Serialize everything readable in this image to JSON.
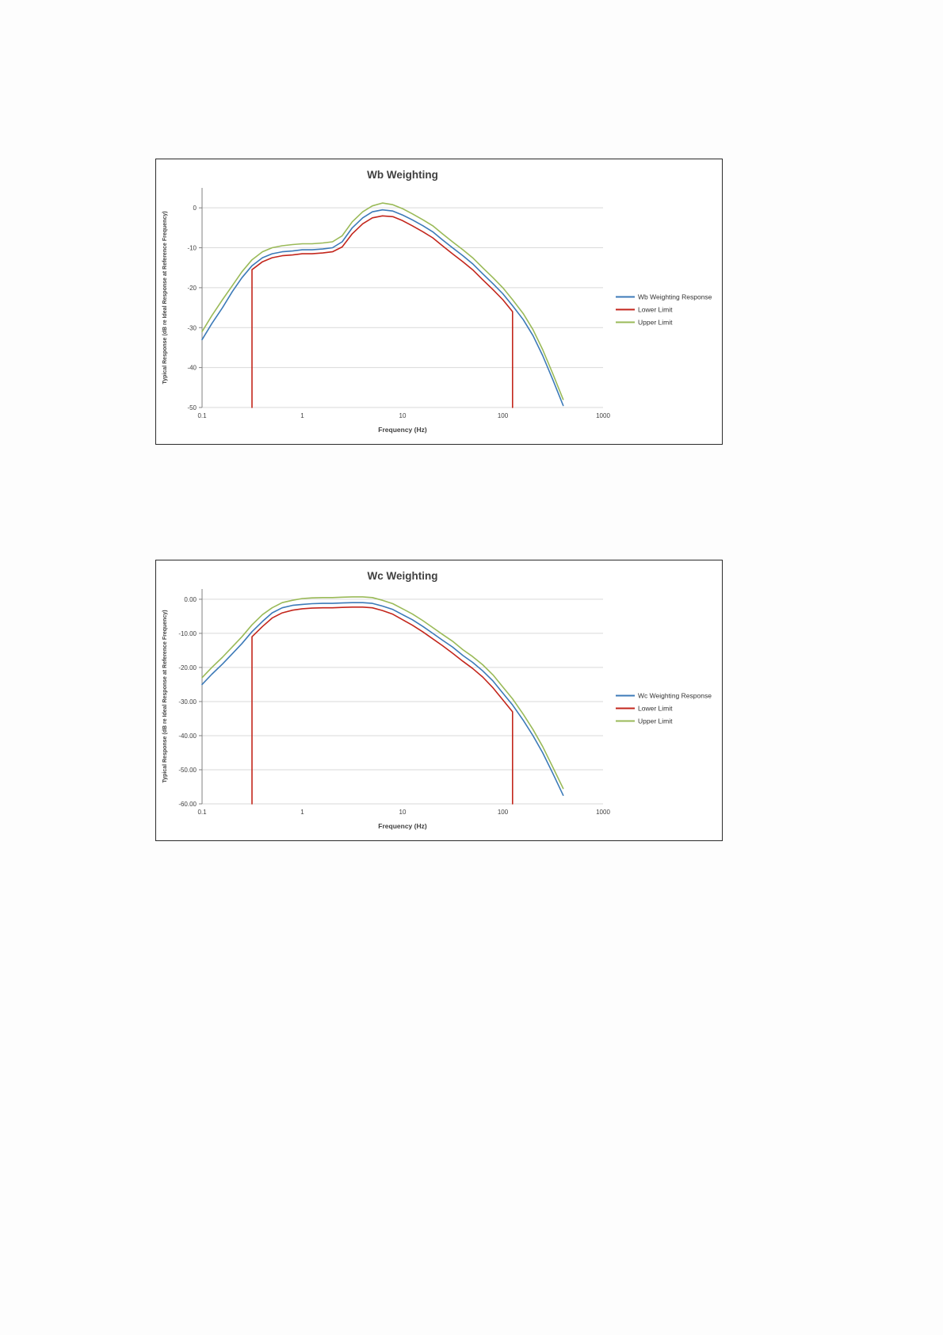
{
  "page": {
    "background": "#ffffff"
  },
  "colors": {
    "grid": "#d9d9d9",
    "axis": "#808080",
    "text": "#404040",
    "title": "#404040",
    "blue": "#3c7ab8",
    "red": "#c3261c",
    "green": "#9aba58"
  },
  "chart_data": [
    {
      "type": "line",
      "id": "wb-weighting",
      "title": "Wb Weighting",
      "xlabel": "Frequency (Hz)",
      "ylabel": "Typical Response (dB re Ideal Response at Reference Frequency)",
      "x_scale": "log",
      "xlim": [
        0.1,
        1000
      ],
      "ylim": [
        5,
        -50
      ],
      "grid": true,
      "legend_position": "right",
      "xticks": [
        {
          "value": 0.1,
          "label": "0.1"
        },
        {
          "value": 1,
          "label": "1"
        },
        {
          "value": 10,
          "label": "10"
        },
        {
          "value": 100,
          "label": "100"
        },
        {
          "value": 1000,
          "label": "1000"
        }
      ],
      "yticks": [
        {
          "value": 0,
          "label": "0"
        },
        {
          "value": -10,
          "label": "-10"
        },
        {
          "value": -20,
          "label": "-20"
        },
        {
          "value": -30,
          "label": "-30"
        },
        {
          "value": -40,
          "label": "-40"
        },
        {
          "value": -50,
          "label": "-50"
        }
      ],
      "series": [
        {
          "name": "Wb Weighting Response",
          "color": "#3c7ab8",
          "points": [
            [
              0.1,
              -33
            ],
            [
              0.125,
              -29
            ],
            [
              0.16,
              -25
            ],
            [
              0.2,
              -21
            ],
            [
              0.25,
              -17.5
            ],
            [
              0.315,
              -14.5
            ],
            [
              0.4,
              -12.5
            ],
            [
              0.5,
              -11.5
            ],
            [
              0.63,
              -11
            ],
            [
              0.8,
              -10.8
            ],
            [
              1,
              -10.5
            ],
            [
              1.25,
              -10.5
            ],
            [
              1.6,
              -10.3
            ],
            [
              2,
              -10
            ],
            [
              2.5,
              -8.5
            ],
            [
              3.15,
              -5
            ],
            [
              4,
              -2.5
            ],
            [
              5,
              -1
            ],
            [
              6.3,
              -0.5
            ],
            [
              8,
              -0.8
            ],
            [
              10,
              -1.8
            ],
            [
              12.5,
              -3
            ],
            [
              16,
              -4.5
            ],
            [
              20,
              -6
            ],
            [
              25,
              -8
            ],
            [
              31.5,
              -10
            ],
            [
              40,
              -12
            ],
            [
              50,
              -14
            ],
            [
              63,
              -16.5
            ],
            [
              80,
              -19
            ],
            [
              100,
              -21.5
            ],
            [
              125,
              -24.5
            ],
            [
              160,
              -28
            ],
            [
              200,
              -32
            ],
            [
              250,
              -37
            ],
            [
              315,
              -43
            ],
            [
              400,
              -49.5
            ]
          ]
        },
        {
          "name": "Lower Limit",
          "color": "#c3261c",
          "points": [
            [
              0.315,
              -50
            ],
            [
              0.315,
              -15.5
            ],
            [
              0.4,
              -13.5
            ],
            [
              0.5,
              -12.5
            ],
            [
              0.63,
              -12
            ],
            [
              0.8,
              -11.8
            ],
            [
              1,
              -11.5
            ],
            [
              1.25,
              -11.5
            ],
            [
              1.6,
              -11.3
            ],
            [
              2,
              -11
            ],
            [
              2.5,
              -9.8
            ],
            [
              3.15,
              -6.5
            ],
            [
              4,
              -4
            ],
            [
              5,
              -2.5
            ],
            [
              6.3,
              -2
            ],
            [
              8,
              -2.2
            ],
            [
              10,
              -3.2
            ],
            [
              12.5,
              -4.5
            ],
            [
              16,
              -6
            ],
            [
              20,
              -7.5
            ],
            [
              25,
              -9.5
            ],
            [
              31.5,
              -11.5
            ],
            [
              40,
              -13.5
            ],
            [
              50,
              -15.5
            ],
            [
              63,
              -18
            ],
            [
              80,
              -20.5
            ],
            [
              100,
              -23
            ],
            [
              125,
              -26
            ],
            [
              125,
              -50
            ]
          ]
        },
        {
          "name": "Upper Limit",
          "color": "#9aba58",
          "points": [
            [
              0.1,
              -31
            ],
            [
              0.125,
              -27
            ],
            [
              0.16,
              -23
            ],
            [
              0.2,
              -19.5
            ],
            [
              0.25,
              -16
            ],
            [
              0.315,
              -13
            ],
            [
              0.4,
              -11
            ],
            [
              0.5,
              -10
            ],
            [
              0.63,
              -9.5
            ],
            [
              0.8,
              -9.2
            ],
            [
              1,
              -9
            ],
            [
              1.25,
              -9
            ],
            [
              1.6,
              -8.8
            ],
            [
              2,
              -8.5
            ],
            [
              2.5,
              -7
            ],
            [
              3.15,
              -3.5
            ],
            [
              4,
              -1
            ],
            [
              5,
              0.5
            ],
            [
              6.3,
              1.2
            ],
            [
              8,
              0.8
            ],
            [
              10,
              -0.2
            ],
            [
              12.5,
              -1.5
            ],
            [
              16,
              -3
            ],
            [
              20,
              -4.5
            ],
            [
              25,
              -6.5
            ],
            [
              31.5,
              -8.5
            ],
            [
              40,
              -10.5
            ],
            [
              50,
              -12.5
            ],
            [
              63,
              -15
            ],
            [
              80,
              -17.5
            ],
            [
              100,
              -20
            ],
            [
              125,
              -23
            ],
            [
              160,
              -26.5
            ],
            [
              200,
              -30.5
            ],
            [
              250,
              -35.5
            ],
            [
              315,
              -41.5
            ],
            [
              400,
              -48
            ]
          ]
        }
      ],
      "legend": [
        "Wb Weighting Response",
        "Lower Limit",
        "Upper Limit"
      ]
    },
    {
      "type": "line",
      "id": "wc-weighting",
      "title": "Wc Weighting",
      "xlabel": "Frequency (Hz)",
      "ylabel": "Typical Response (dB re Ideal Response at Reference Frequency)",
      "x_scale": "log",
      "xlim": [
        0.1,
        1000
      ],
      "ylim": [
        3,
        -60
      ],
      "grid": true,
      "legend_position": "right",
      "xticks": [
        {
          "value": 0.1,
          "label": "0.1"
        },
        {
          "value": 1,
          "label": "1"
        },
        {
          "value": 10,
          "label": "10"
        },
        {
          "value": 100,
          "label": "100"
        },
        {
          "value": 1000,
          "label": "1000"
        }
      ],
      "yticks": [
        {
          "value": 0,
          "label": "0.00"
        },
        {
          "value": -10,
          "label": "-10.00"
        },
        {
          "value": -20,
          "label": "-20.00"
        },
        {
          "value": -30,
          "label": "-30.00"
        },
        {
          "value": -40,
          "label": "-40.00"
        },
        {
          "value": -50,
          "label": "-50.00"
        },
        {
          "value": -60,
          "label": "-60.00"
        }
      ],
      "series": [
        {
          "name": "Wc Weighting Response",
          "color": "#3c7ab8",
          "points": [
            [
              0.1,
              -25
            ],
            [
              0.125,
              -22
            ],
            [
              0.16,
              -19
            ],
            [
              0.2,
              -16
            ],
            [
              0.25,
              -13
            ],
            [
              0.315,
              -9.5
            ],
            [
              0.4,
              -6.5
            ],
            [
              0.5,
              -4
            ],
            [
              0.63,
              -2.5
            ],
            [
              0.8,
              -1.8
            ],
            [
              1,
              -1.5
            ],
            [
              1.25,
              -1.3
            ],
            [
              1.6,
              -1.2
            ],
            [
              2,
              -1.2
            ],
            [
              2.5,
              -1.1
            ],
            [
              3.15,
              -1
            ],
            [
              4,
              -1
            ],
            [
              5,
              -1.2
            ],
            [
              6.3,
              -2
            ],
            [
              8,
              -3
            ],
            [
              10,
              -4.5
            ],
            [
              12.5,
              -6
            ],
            [
              16,
              -8
            ],
            [
              20,
              -10
            ],
            [
              25,
              -12
            ],
            [
              31.5,
              -14
            ],
            [
              40,
              -16.5
            ],
            [
              50,
              -18.5
            ],
            [
              63,
              -21
            ],
            [
              80,
              -24
            ],
            [
              100,
              -27.5
            ],
            [
              125,
              -31
            ],
            [
              160,
              -35.5
            ],
            [
              200,
              -40
            ],
            [
              250,
              -45
            ],
            [
              315,
              -51
            ],
            [
              400,
              -57.5
            ]
          ]
        },
        {
          "name": "Lower Limit",
          "color": "#c3261c",
          "points": [
            [
              0.315,
              -60
            ],
            [
              0.315,
              -11
            ],
            [
              0.4,
              -8
            ],
            [
              0.5,
              -5.5
            ],
            [
              0.63,
              -4
            ],
            [
              0.8,
              -3.2
            ],
            [
              1,
              -2.8
            ],
            [
              1.25,
              -2.6
            ],
            [
              1.6,
              -2.5
            ],
            [
              2,
              -2.5
            ],
            [
              2.5,
              -2.4
            ],
            [
              3.15,
              -2.3
            ],
            [
              4,
              -2.3
            ],
            [
              5,
              -2.5
            ],
            [
              6.3,
              -3.3
            ],
            [
              8,
              -4.4
            ],
            [
              10,
              -6
            ],
            [
              12.5,
              -7.6
            ],
            [
              16,
              -9.6
            ],
            [
              20,
              -11.6
            ],
            [
              25,
              -13.6
            ],
            [
              31.5,
              -15.8
            ],
            [
              40,
              -18.2
            ],
            [
              50,
              -20.3
            ],
            [
              63,
              -22.8
            ],
            [
              80,
              -26
            ],
            [
              100,
              -29.5
            ],
            [
              125,
              -33
            ],
            [
              125,
              -60
            ]
          ]
        },
        {
          "name": "Upper Limit",
          "color": "#9aba58",
          "points": [
            [
              0.1,
              -23
            ],
            [
              0.125,
              -20
            ],
            [
              0.16,
              -17
            ],
            [
              0.2,
              -14
            ],
            [
              0.25,
              -11
            ],
            [
              0.315,
              -7.5
            ],
            [
              0.4,
              -4.5
            ],
            [
              0.5,
              -2.5
            ],
            [
              0.63,
              -1
            ],
            [
              0.8,
              -0.3
            ],
            [
              1,
              0.2
            ],
            [
              1.25,
              0.4
            ],
            [
              1.6,
              0.5
            ],
            [
              2,
              0.5
            ],
            [
              2.5,
              0.6
            ],
            [
              3.15,
              0.7
            ],
            [
              4,
              0.7
            ],
            [
              5,
              0.5
            ],
            [
              6.3,
              -0.3
            ],
            [
              8,
              -1.3
            ],
            [
              10,
              -2.8
            ],
            [
              12.5,
              -4.3
            ],
            [
              16,
              -6.3
            ],
            [
              20,
              -8.3
            ],
            [
              25,
              -10.3
            ],
            [
              31.5,
              -12.3
            ],
            [
              40,
              -14.8
            ],
            [
              50,
              -16.8
            ],
            [
              63,
              -19.2
            ],
            [
              80,
              -22.2
            ],
            [
              100,
              -25.7
            ],
            [
              125,
              -29.2
            ],
            [
              160,
              -33.7
            ],
            [
              200,
              -38.2
            ],
            [
              250,
              -43.2
            ],
            [
              315,
              -49.2
            ],
            [
              400,
              -55.5
            ]
          ]
        }
      ],
      "legend": [
        "Wc Weighting Response",
        "Lower Limit",
        "Upper Limit"
      ]
    }
  ]
}
